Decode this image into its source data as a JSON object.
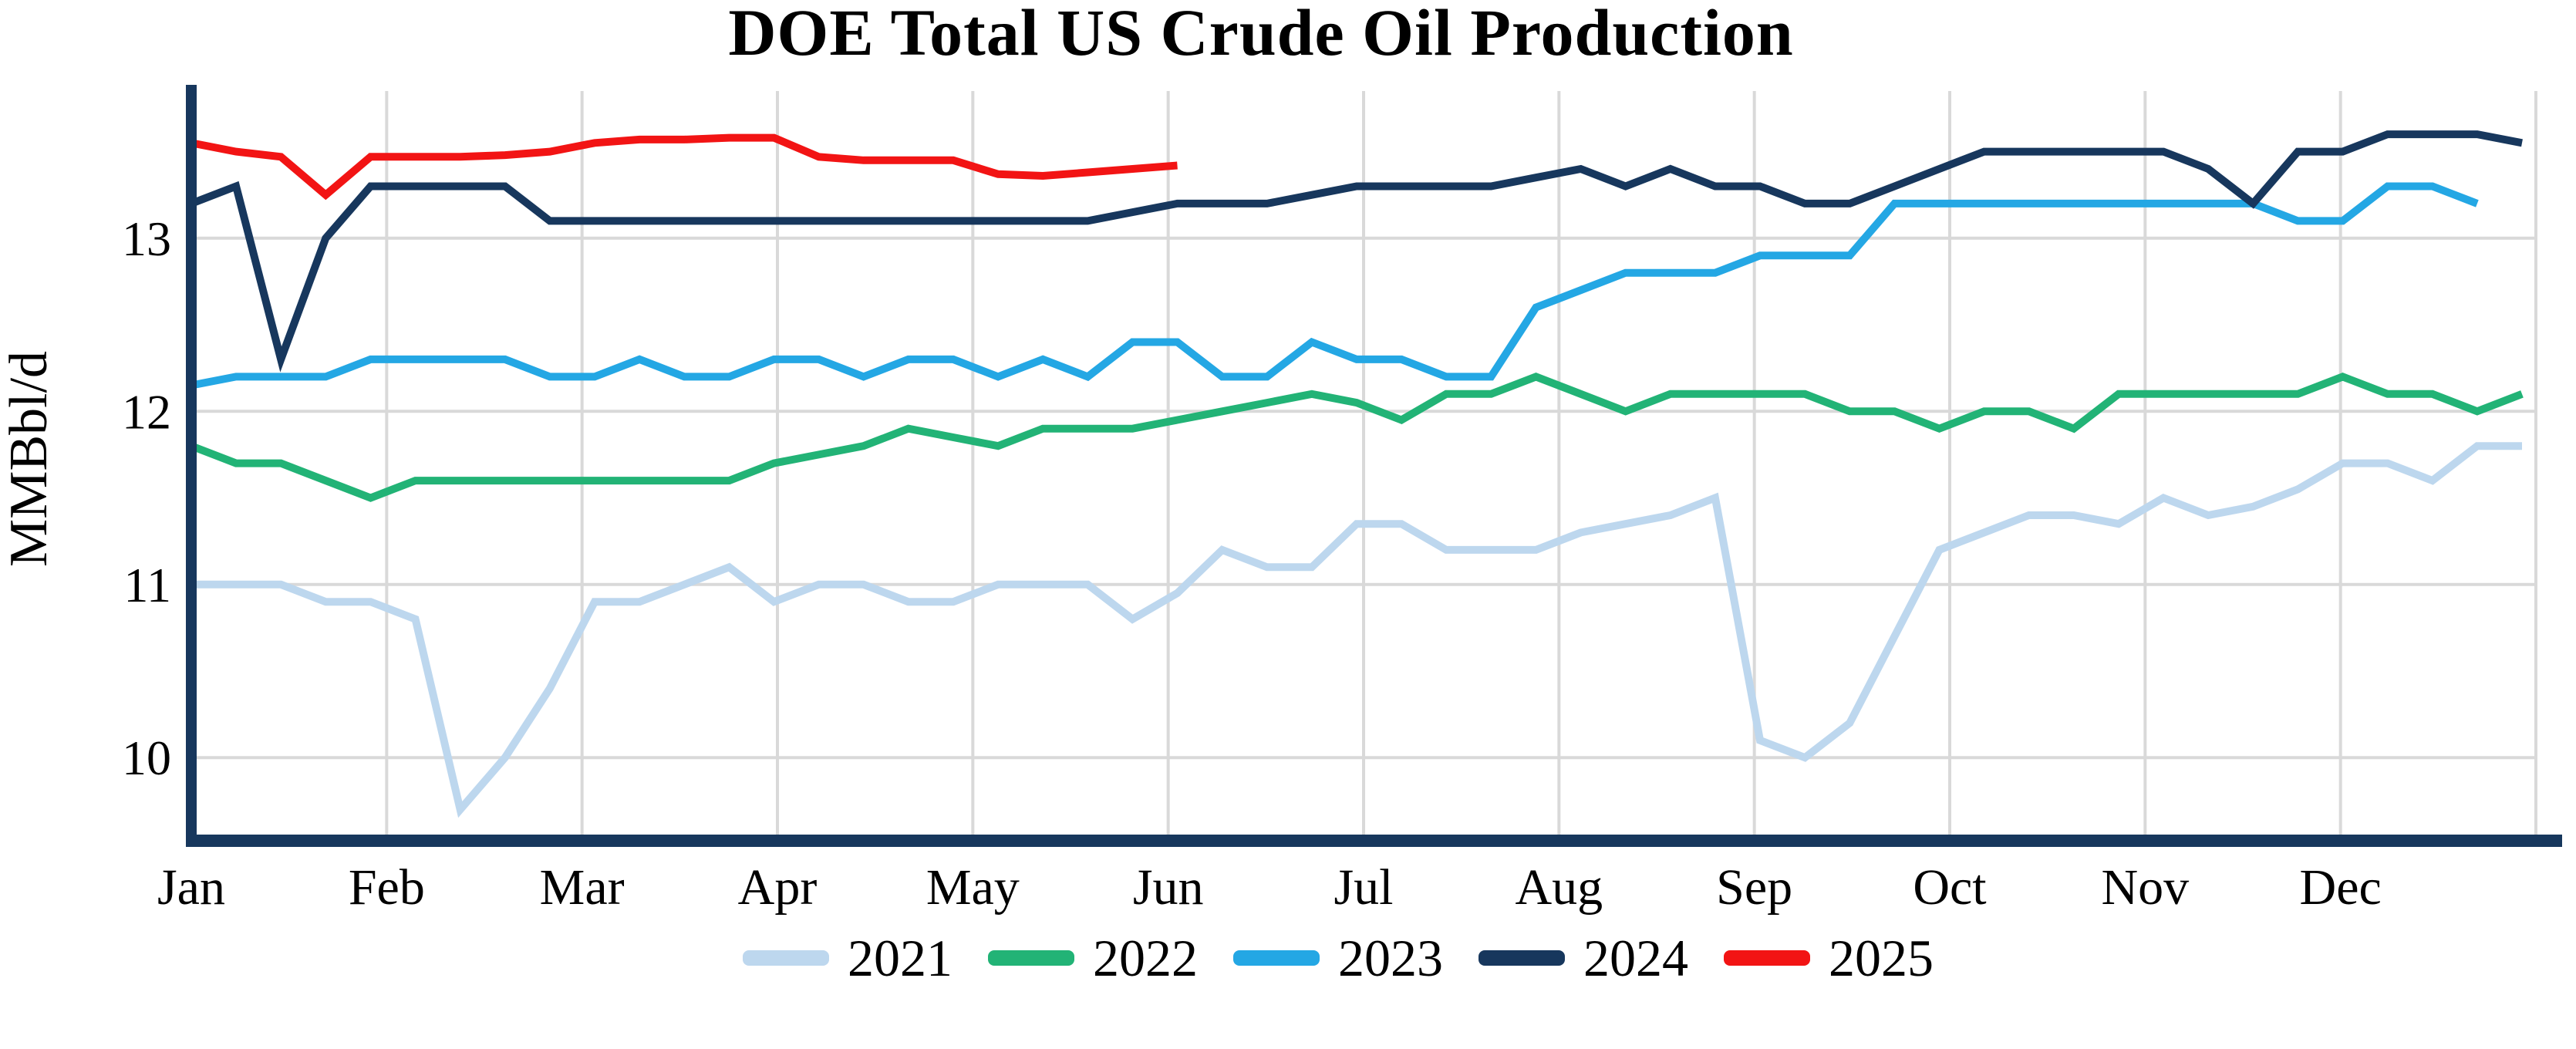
{
  "title": "DOE Total US Crude Oil Production",
  "y_axis_label": "MMBbl/d",
  "colors": {
    "background": "#ffffff",
    "axis": "#17375D",
    "gridline": "#D9D9D9",
    "title_text": "#000000"
  },
  "chart_data": {
    "type": "line",
    "title": "DOE Total US Crude Oil Production",
    "xlabel": "",
    "ylabel": "MMBbl/d",
    "x_unit": "weekly, Jan through Dec",
    "grid": true,
    "legend_position": "bottom",
    "ylim": [
      9.52,
      13.85
    ],
    "y_ticks": [
      13,
      12,
      11,
      10
    ],
    "y_tick_labels": [
      "13",
      "12",
      "11",
      "10"
    ],
    "x_tick_labels": [
      "Jan",
      "Feb",
      "Mar",
      "Apr",
      "May",
      "Jun",
      "Jul",
      "Aug",
      "Sep",
      "Oct",
      "Nov",
      "Dec"
    ],
    "series": [
      {
        "name": "2021",
        "color": "#BDD7EE",
        "values": [
          11.0,
          11.0,
          11.0,
          10.9,
          10.9,
          10.8,
          9.7,
          10.0,
          10.4,
          10.9,
          10.9,
          11.0,
          11.1,
          10.9,
          11.0,
          11.0,
          10.9,
          10.9,
          11.0,
          11.0,
          11.0,
          10.8,
          10.95,
          11.2,
          11.1,
          11.1,
          11.35,
          11.35,
          11.2,
          11.2,
          11.2,
          11.3,
          11.35,
          11.4,
          11.5,
          10.1,
          10.0,
          10.2,
          10.7,
          11.2,
          11.3,
          11.4,
          11.4,
          11.35,
          11.5,
          11.4,
          11.45,
          11.55,
          11.7,
          11.7,
          11.6,
          11.8,
          11.8
        ]
      },
      {
        "name": "2022",
        "color": "#22B376",
        "values": [
          11.8,
          11.7,
          11.7,
          11.6,
          11.5,
          11.6,
          11.6,
          11.6,
          11.6,
          11.6,
          11.6,
          11.6,
          11.6,
          11.7,
          11.75,
          11.8,
          11.9,
          11.85,
          11.8,
          11.9,
          11.9,
          11.9,
          11.95,
          12.0,
          12.05,
          12.1,
          12.05,
          11.95,
          12.1,
          12.1,
          12.2,
          12.1,
          12.0,
          12.1,
          12.1,
          12.1,
          12.1,
          12.0,
          12.0,
          11.9,
          12.0,
          12.0,
          11.9,
          12.1,
          12.1,
          12.1,
          12.1,
          12.1,
          12.2,
          12.1,
          12.1,
          12.0,
          12.1
        ]
      },
      {
        "name": "2023",
        "color": "#24A7E4",
        "values": [
          12.15,
          12.2,
          12.2,
          12.2,
          12.3,
          12.3,
          12.3,
          12.3,
          12.2,
          12.2,
          12.3,
          12.2,
          12.2,
          12.3,
          12.3,
          12.2,
          12.3,
          12.3,
          12.2,
          12.3,
          12.2,
          12.4,
          12.4,
          12.2,
          12.2,
          12.4,
          12.3,
          12.3,
          12.2,
          12.2,
          12.6,
          12.7,
          12.8,
          12.8,
          12.8,
          12.9,
          12.9,
          12.9,
          13.2,
          13.2,
          13.2,
          13.2,
          13.2,
          13.2,
          13.2,
          13.2,
          13.2,
          13.1,
          13.1,
          13.3,
          13.3,
          13.2
        ]
      },
      {
        "name": "2024",
        "color": "#17375D",
        "values": [
          13.2,
          13.3,
          12.3,
          13.0,
          13.3,
          13.3,
          13.3,
          13.3,
          13.1,
          13.1,
          13.1,
          13.1,
          13.1,
          13.1,
          13.1,
          13.1,
          13.1,
          13.1,
          13.1,
          13.1,
          13.1,
          13.15,
          13.2,
          13.2,
          13.2,
          13.25,
          13.3,
          13.3,
          13.3,
          13.3,
          13.35,
          13.4,
          13.3,
          13.4,
          13.3,
          13.3,
          13.2,
          13.2,
          13.3,
          13.4,
          13.5,
          13.5,
          13.5,
          13.5,
          13.5,
          13.4,
          13.2,
          13.5,
          13.5,
          13.6,
          13.6,
          13.6,
          13.55
        ]
      },
      {
        "name": "2025",
        "color": "#F21414",
        "values": [
          13.55,
          13.5,
          13.47,
          13.25,
          13.47,
          13.47,
          13.47,
          13.48,
          13.5,
          13.55,
          13.57,
          13.57,
          13.58,
          13.58,
          13.47,
          13.45,
          13.45,
          13.45,
          13.37,
          13.36,
          13.38,
          13.4,
          13.42
        ]
      }
    ]
  }
}
